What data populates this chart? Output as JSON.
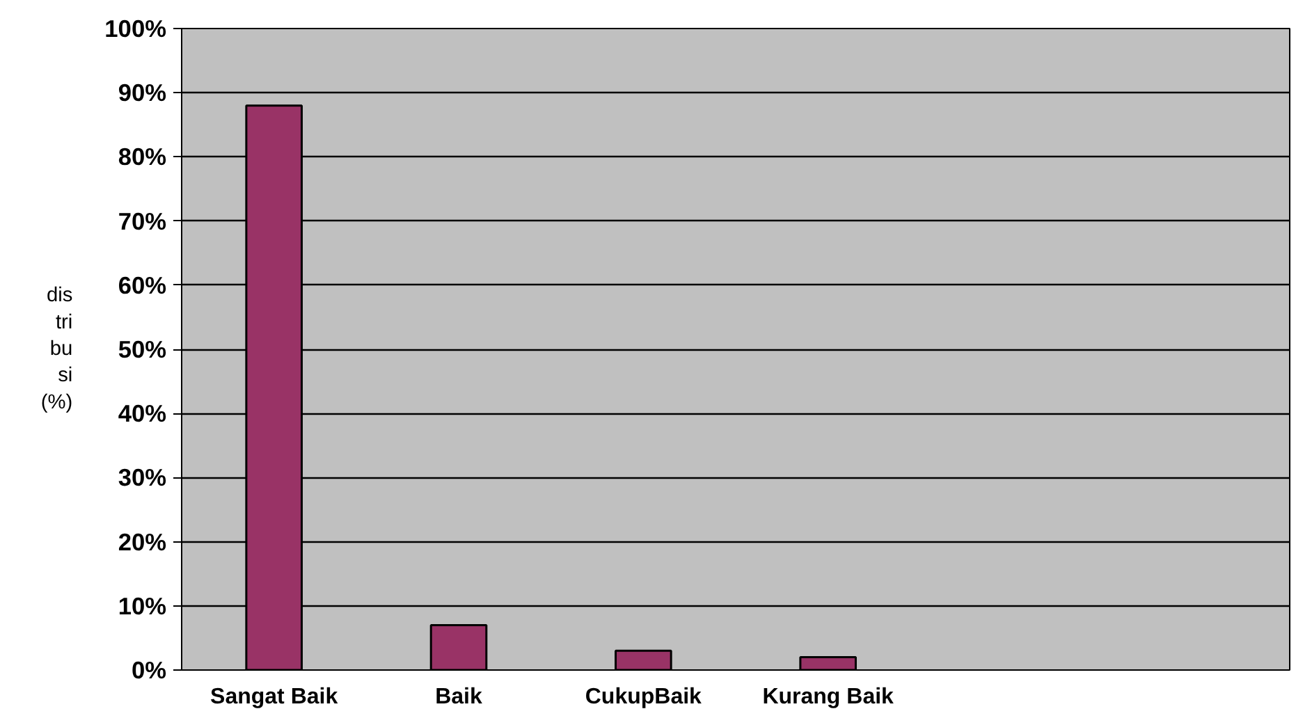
{
  "chart_data": {
    "type": "bar",
    "ylabel": "dis tri bu si (%)",
    "categories": [
      "Sangat Baik",
      "Baik",
      "CukupBaik",
      "Kurang Baik",
      null,
      null
    ],
    "values": [
      88,
      7,
      3,
      2,
      null,
      null
    ],
    "color": "#993366",
    "ylim": [
      0,
      100
    ],
    "yticks": [
      {
        "value": 0,
        "label": "0%"
      },
      {
        "value": 10,
        "label": "10%"
      },
      {
        "value": 20,
        "label": "20%"
      },
      {
        "value": 30,
        "label": "30%"
      },
      {
        "value": 40,
        "label": "40%"
      },
      {
        "value": 50,
        "label": "50%"
      },
      {
        "value": 60,
        "label": "60%"
      },
      {
        "value": 70,
        "label": "70%"
      },
      {
        "value": 80,
        "label": "80%"
      },
      {
        "value": 90,
        "label": "90%"
      },
      {
        "value": 100,
        "label": "100%"
      }
    ],
    "grid": "y"
  }
}
